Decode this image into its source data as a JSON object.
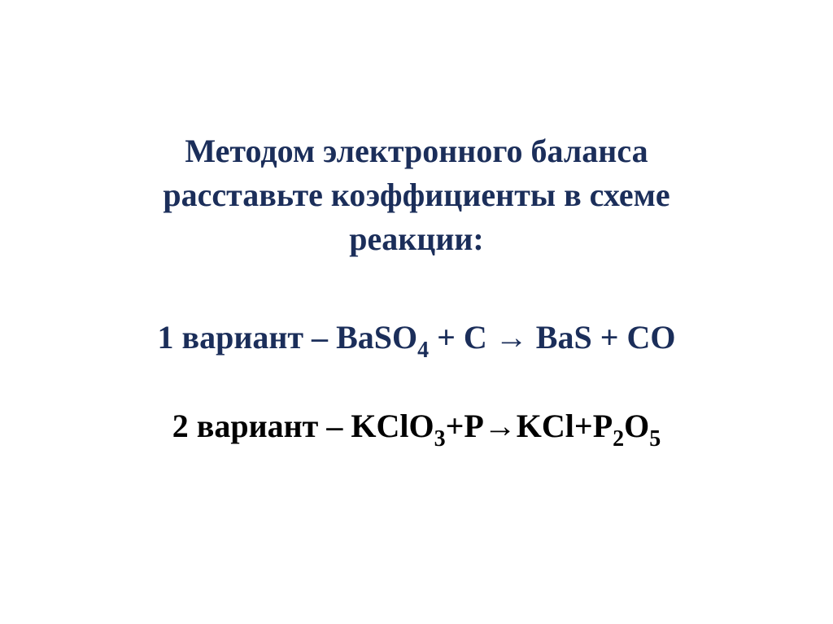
{
  "colors": {
    "heading": "#1b2e5a",
    "variant1": "#1b2e5a",
    "variant2": "#000000",
    "background": "#ffffff"
  },
  "heading": {
    "line1": "Методом электронного баланса",
    "line2": "расставьте коэффициенты в схеме",
    "line3": "реакции:"
  },
  "variant1": {
    "label": "1 вариант – ",
    "formula_parts": {
      "p1": "BaSO",
      "s1": "4",
      "p2": " + C → BaS + CO"
    }
  },
  "variant2": {
    "label": "2 вариант – ",
    "formula_parts": {
      "p1": "KClO",
      "s1": "3",
      "p2": "+P→KCl+P",
      "s2": "2",
      "p3": "O",
      "s3": "5"
    }
  }
}
